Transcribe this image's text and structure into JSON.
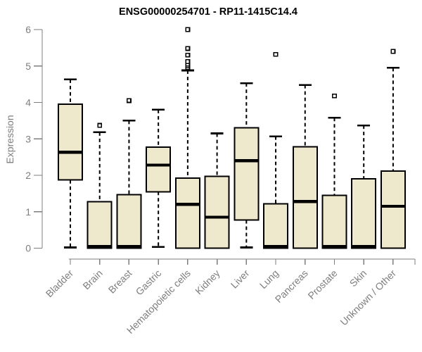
{
  "chart_data": {
    "type": "boxplot",
    "title": "ENSG00000254701 - RP11-1415C14.4",
    "ylabel": "Expression",
    "xlabel": "",
    "ylim": [
      0,
      6
    ],
    "yticks": [
      "0",
      "1",
      "2",
      "3",
      "4",
      "5",
      "6"
    ],
    "grid": false,
    "legend": "none",
    "categories": [
      "Bladder",
      "Brain",
      "Breast",
      "Gastric",
      "Hematopoietic cells",
      "Kidney",
      "Liver",
      "Lung",
      "Pancreas",
      "Prostate",
      "Skin",
      "Unknown / Other"
    ],
    "series": [
      {
        "name": "Bladder",
        "min": 0.02,
        "q1": 1.87,
        "median": 2.63,
        "q3": 3.95,
        "max": 4.63,
        "outliers": []
      },
      {
        "name": "Brain",
        "min": 0.0,
        "q1": 0.0,
        "median": 0.03,
        "q3": 1.28,
        "max": 3.18,
        "outliers": [
          3.37
        ]
      },
      {
        "name": "Breast",
        "min": 0.0,
        "q1": 0.0,
        "median": 0.03,
        "q3": 1.47,
        "max": 3.5,
        "outliers": [
          4.05
        ]
      },
      {
        "name": "Gastric",
        "min": 0.03,
        "q1": 1.55,
        "median": 2.28,
        "q3": 2.77,
        "max": 3.8,
        "outliers": []
      },
      {
        "name": "Hematopoietic cells",
        "min": 0.0,
        "q1": 0.0,
        "median": 1.2,
        "q3": 1.92,
        "max": 4.88,
        "outliers": [
          4.95,
          5.0,
          5.05,
          5.12,
          5.3,
          5.48,
          6.0
        ]
      },
      {
        "name": "Kidney",
        "min": 0.0,
        "q1": 0.0,
        "median": 0.85,
        "q3": 1.97,
        "max": 3.15,
        "outliers": []
      },
      {
        "name": "Liver",
        "min": 0.02,
        "q1": 0.77,
        "median": 2.4,
        "q3": 3.3,
        "max": 4.53,
        "outliers": []
      },
      {
        "name": "Lung",
        "min": 0.0,
        "q1": 0.0,
        "median": 0.03,
        "q3": 1.22,
        "max": 3.07,
        "outliers": [
          5.32
        ]
      },
      {
        "name": "Pancreas",
        "min": 0.0,
        "q1": 0.0,
        "median": 1.28,
        "q3": 2.78,
        "max": 4.48,
        "outliers": []
      },
      {
        "name": "Prostate",
        "min": 0.0,
        "q1": 0.0,
        "median": 0.03,
        "q3": 1.45,
        "max": 3.58,
        "outliers": [
          4.18
        ]
      },
      {
        "name": "Skin",
        "min": 0.0,
        "q1": 0.0,
        "median": 0.03,
        "q3": 1.9,
        "max": 3.37,
        "outliers": []
      },
      {
        "name": "Unknown / Other",
        "min": 0.0,
        "q1": 0.0,
        "median": 1.15,
        "q3": 2.12,
        "max": 4.95,
        "outliers": [
          5.4
        ]
      }
    ],
    "colors": {
      "background": "#ffffff",
      "box_fill": "#EEE8CD",
      "box_border": "#000000",
      "median": "#000000",
      "whisker": "#000000",
      "outlier": "#000000",
      "axis": "#7E7E7E",
      "tick_label": "#7E7E7E",
      "title": "#000000"
    }
  }
}
